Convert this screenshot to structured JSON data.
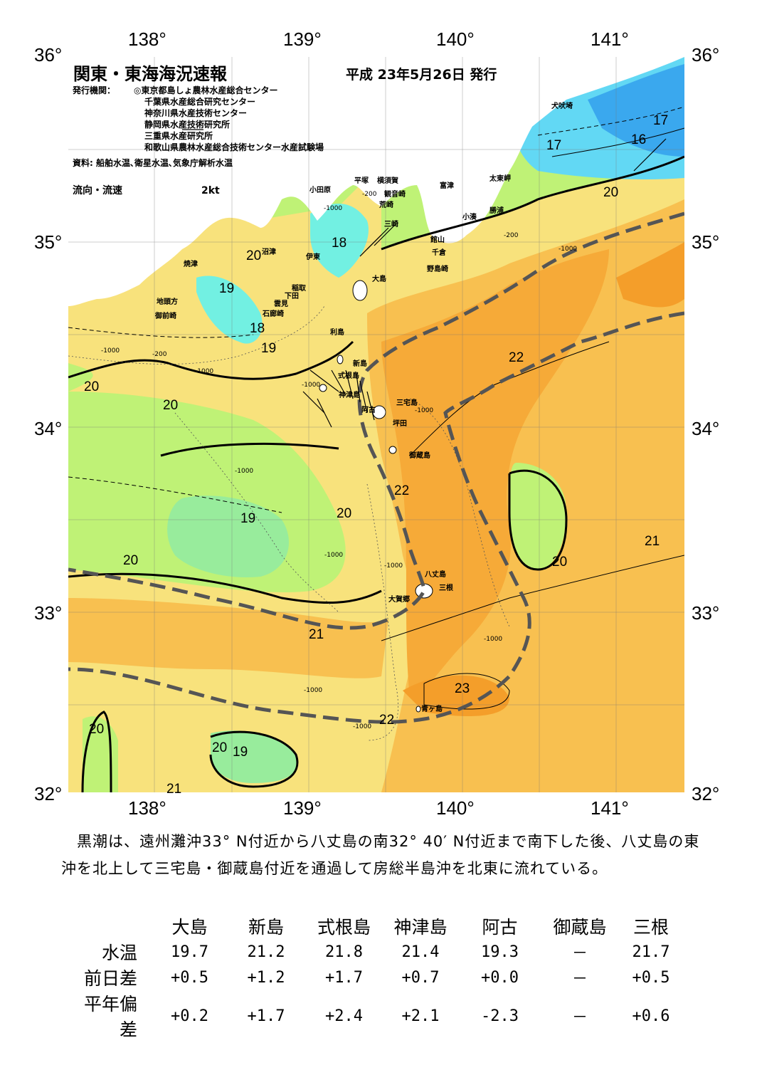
{
  "axes": {
    "top": [
      "138°",
      "139°",
      "140°",
      "141°"
    ],
    "bottom": [
      "138°",
      "139°",
      "140°",
      "141°"
    ],
    "left": [
      "36°",
      "35°",
      "34°",
      "33°",
      "32°"
    ],
    "right": [
      "36°",
      "35°",
      "34°",
      "33°",
      "32°"
    ]
  },
  "header": {
    "title": "関東・東海海況速報",
    "date": "平成 23年5月26日 発行",
    "agency_label": "発行機関：",
    "agencies": [
      "◎東京都島しょ農林水産総合センター",
      "千葉県水産総合研究センター",
      "神奈川県水産技術センター",
      "静岡県水産技術研究所",
      "三重県水産研究所",
      "和歌山県農林水産総合技術センター水産試験場"
    ],
    "source": "資料: 船舶水温､衛星水温､気象庁解析水温",
    "legend_label": "流向・流速",
    "legend_value": "2kt"
  },
  "places": {
    "inubo": "犬吠埼",
    "taito": "太東岬",
    "katsuura": "勝浦",
    "kominato": "小湊",
    "tomitsu": "富津",
    "yokosuka": "横須賀",
    "kannon": "観音崎",
    "arasaki": "荒崎",
    "jogashima": "三崎",
    "tateyama": "館山",
    "chikura": "千倉",
    "nojima": "野島崎",
    "hiratsuka": "平塚",
    "odawara": "小田原",
    "numazu": "沼津",
    "ito": "伊東",
    "inatori": "稲取",
    "shimoda": "下田",
    "mikomoto": "雲見",
    "irozaki": "石廊崎",
    "yaizu": "焼津",
    "jitoka": "地頭方",
    "omaezaki": "御前崎",
    "oshima": "大島",
    "toshima": "利島",
    "niijima": "新島",
    "shikine": "式根島",
    "kozu": "神津島",
    "miyake": "三宅島",
    "ako": "阿古",
    "tsubota": "坪田",
    "mikura": "御蔵島",
    "hachijo": "八丈島",
    "mitsune": "三根",
    "okago": "大賀郷",
    "aogashima": "青ヶ島"
  },
  "isotherms": [
    "17",
    "16",
    "17",
    "20",
    "20",
    "18",
    "19",
    "18",
    "19",
    "20",
    "20",
    "22",
    "19",
    "20",
    "22",
    "20",
    "20",
    "21",
    "21",
    "23",
    "22",
    "20",
    "20",
    "19",
    "21"
  ],
  "depths": [
    "-200",
    "-1000",
    "-200",
    "-1000",
    "-200",
    "-1000",
    "-1000",
    "-1000",
    "-1000",
    "-1000",
    "-1000",
    "-1000",
    "-1000",
    "-1000",
    "-1000"
  ],
  "summary": "　黒潮は、遠州灘沖33° N付近から八丈島の南32° 40′ N付近まで南下した後、八丈島の東沖を北上して三宅島・御蔵島付近を通過して房総半島沖を北東に流れている。",
  "table": {
    "columns": [
      "大島",
      "新島",
      "式根島",
      "神津島",
      "阿古",
      "御蔵島",
      "三根"
    ],
    "rows": [
      {
        "label": "水温",
        "values": [
          "19.7",
          "21.2",
          "21.8",
          "21.4",
          "19.3",
          "－",
          "21.7"
        ]
      },
      {
        "label": "前日差",
        "values": [
          "+0.5",
          "+1.2",
          "+1.7",
          "+0.7",
          "+0.0",
          "－",
          "+0.5"
        ]
      },
      {
        "label": "平年偏差",
        "values": [
          "+0.2",
          "+1.7",
          "+2.4",
          "+2.1",
          "-2.3",
          "－",
          "+0.6"
        ]
      }
    ]
  },
  "colors": {
    "t16": "#3aa8ee",
    "t17": "#62d8f4",
    "t18": "#72f0e2",
    "t19": "#98ec9c",
    "t20": "#bff276",
    "t21": "#f8e27c",
    "t22": "#f8c050",
    "t23": "#f49e2a",
    "land": "#ffffff",
    "kuroshio": "#555555"
  }
}
